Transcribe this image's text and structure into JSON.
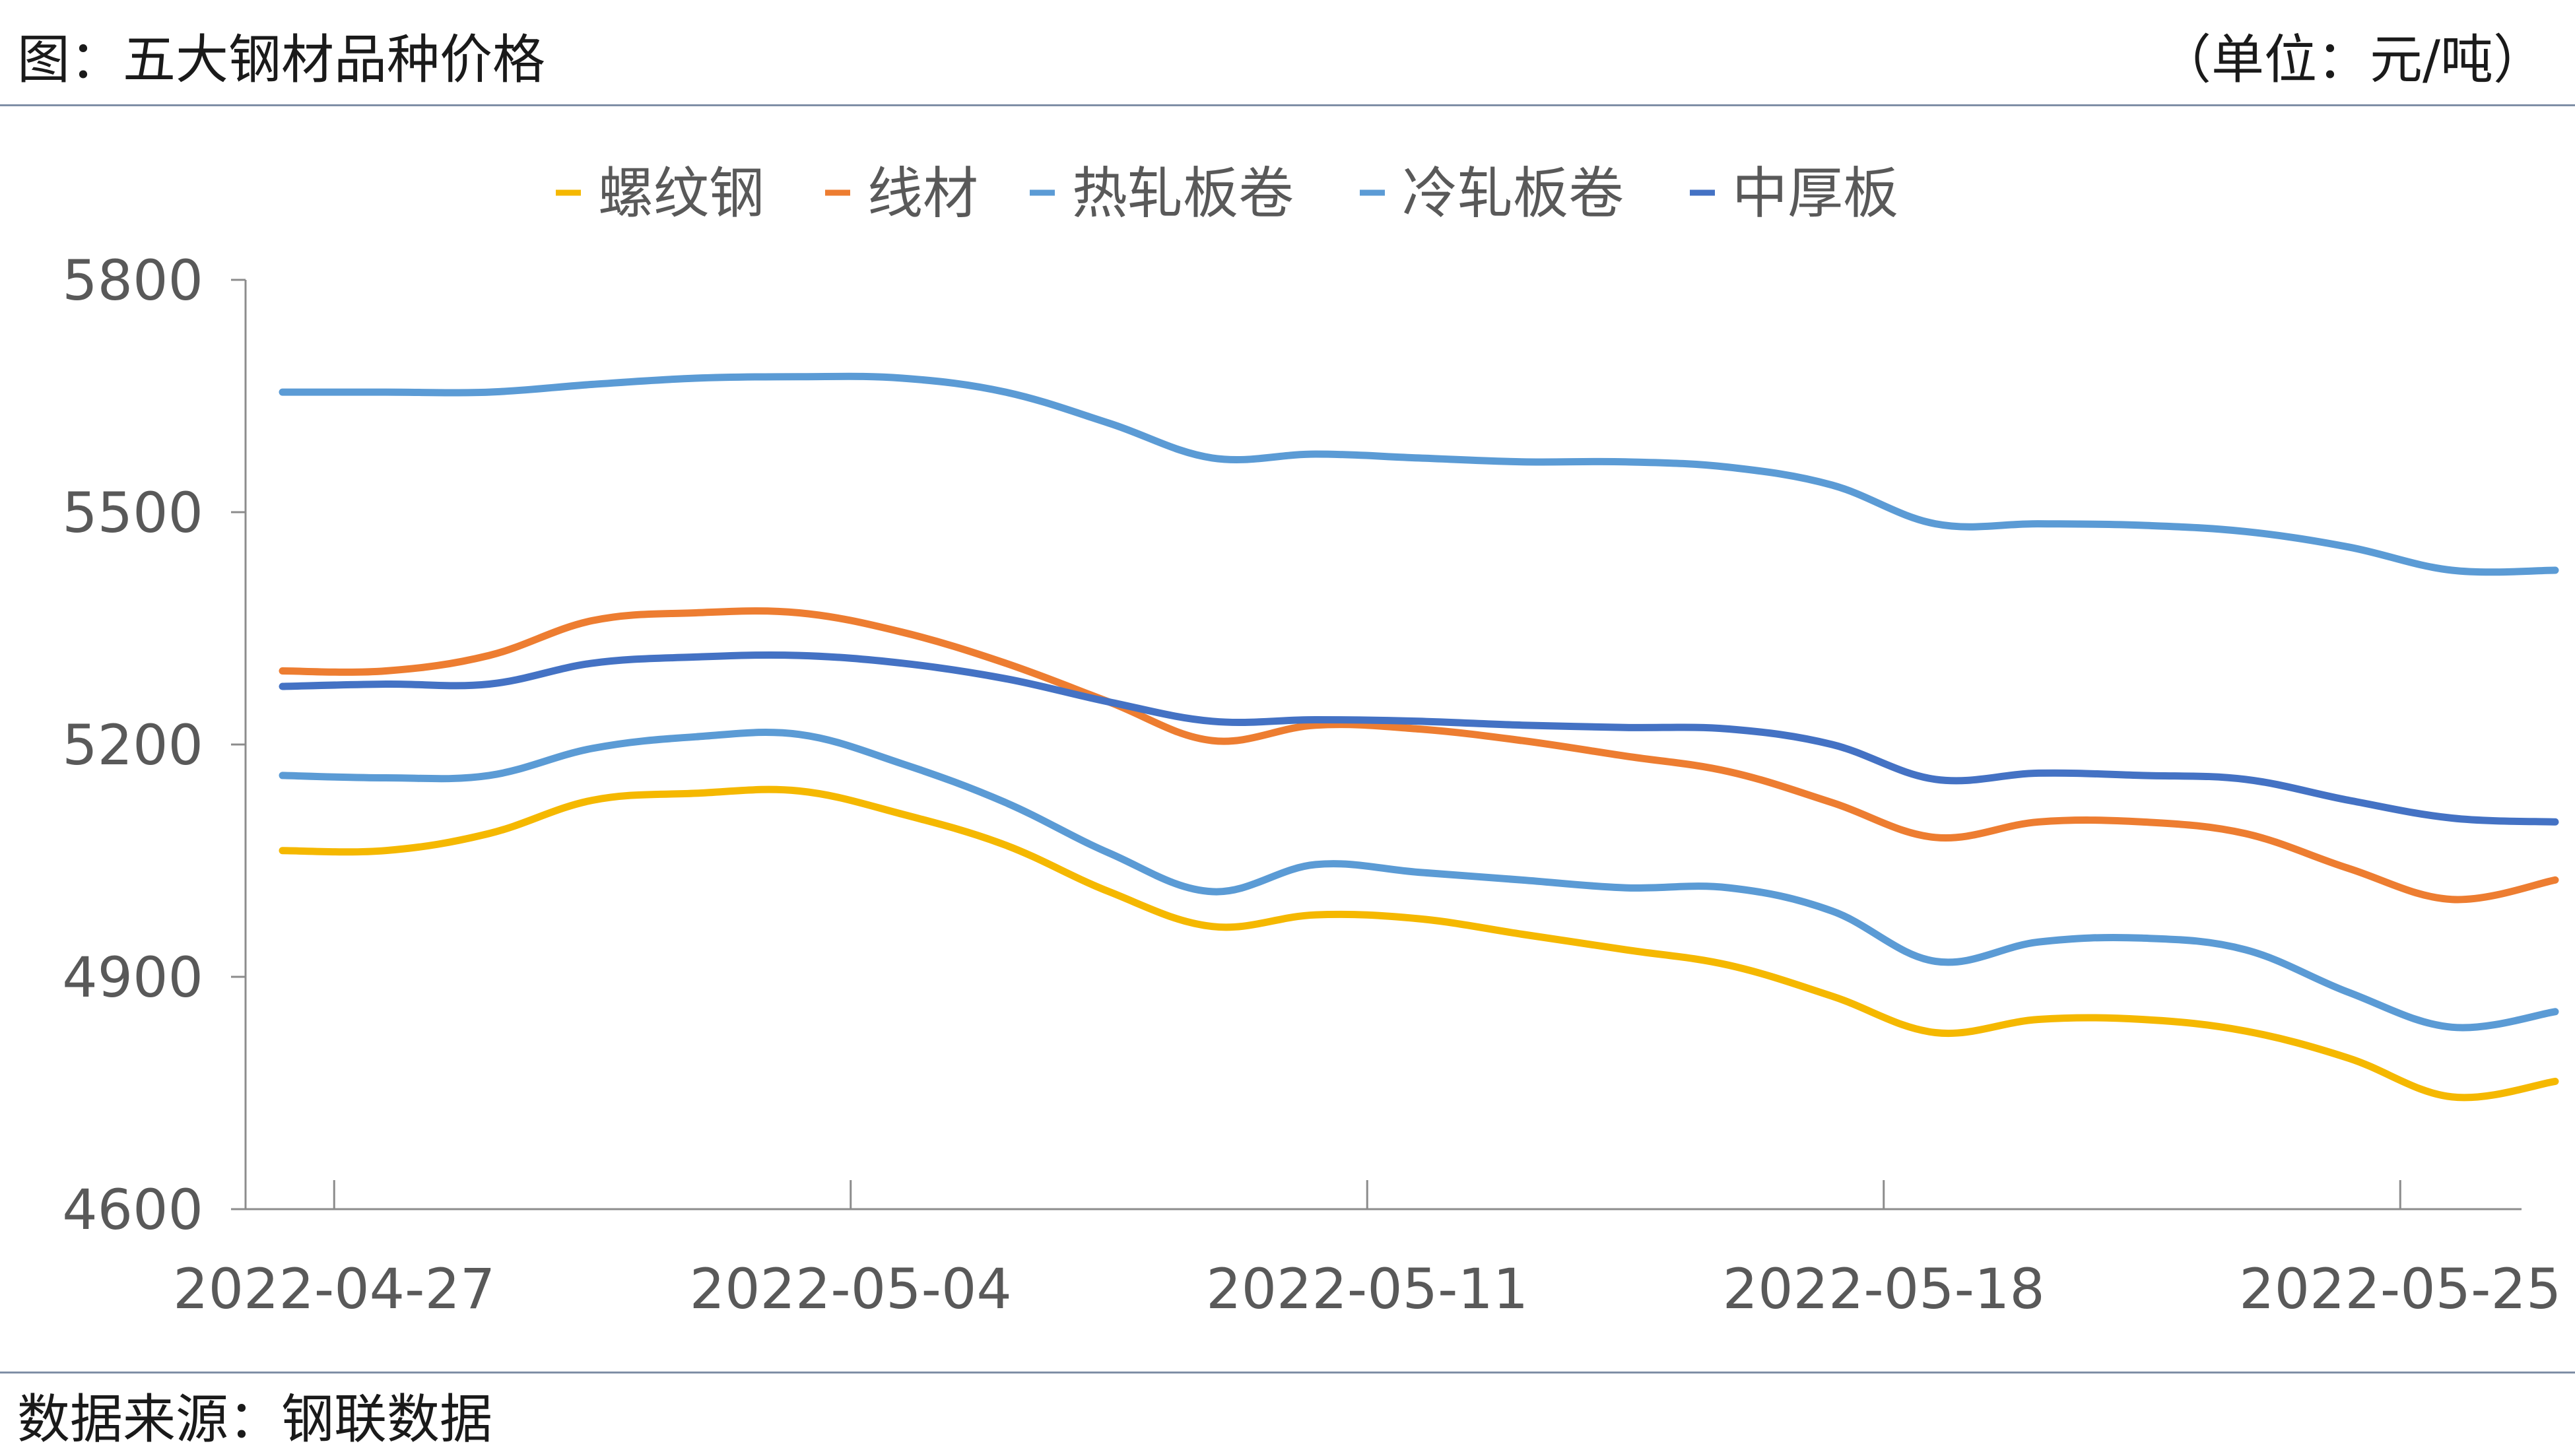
{
  "header": {
    "title": "图：五大钢材品种价格",
    "unit": "（单位：元/吨）"
  },
  "footer": {
    "source": "数据来源：钢联数据"
  },
  "colors": {
    "axis": "#8c8c8c",
    "tick_text": "#595959",
    "legend_text": "#595959"
  },
  "chart_data": {
    "type": "line",
    "title": "",
    "xlabel": "",
    "ylabel": "",
    "ylim": [
      4600,
      5800
    ],
    "y_ticks": [
      4600,
      4900,
      5200,
      5500,
      5800
    ],
    "x": [
      "2022-04-27",
      "2022-04-28",
      "2022-04-29",
      "2022-05-02",
      "2022-05-03",
      "2022-05-04",
      "2022-05-05",
      "2022-05-06",
      "2022-05-09",
      "2022-05-10",
      "2022-05-11",
      "2022-05-12",
      "2022-05-13",
      "2022-05-16",
      "2022-05-17",
      "2022-05-18",
      "2022-05-19",
      "2022-05-20",
      "2022-05-23",
      "2022-05-24",
      "2022-05-25",
      "2022-05-26",
      "2022-05-27"
    ],
    "x_tick_labels": [
      "2022-04-27",
      "2022-05-04",
      "2022-05-11",
      "2022-05-18",
      "2022-05-25"
    ],
    "legend_position": "top",
    "grid": false,
    "series": [
      {
        "name": "螺纹钢",
        "color": "#f5b800",
        "values": [
          5063,
          5063,
          5085,
          5128,
          5137,
          5140,
          5110,
          5070,
          5010,
          4965,
          4980,
          4975,
          4955,
          4935,
          4915,
          4875,
          4828,
          4845,
          4845,
          4830,
          4795,
          4745,
          4765
        ]
      },
      {
        "name": "线材",
        "color": "#ed7d31",
        "values": [
          5295,
          5295,
          5315,
          5360,
          5370,
          5370,
          5345,
          5305,
          5255,
          5205,
          5225,
          5220,
          5205,
          5185,
          5165,
          5125,
          5080,
          5100,
          5100,
          5085,
          5040,
          5000,
          5025
        ]
      },
      {
        "name": "热轧板卷",
        "color": "#5b9bd5",
        "values": [
          5160,
          5157,
          5160,
          5195,
          5210,
          5213,
          5175,
          5125,
          5060,
          5010,
          5045,
          5035,
          5025,
          5015,
          5015,
          4985,
          4920,
          4945,
          4950,
          4935,
          4880,
          4835,
          4855
        ]
      },
      {
        "name": "冷轧板卷",
        "color": "#5b9bd5",
        "values": [
          5655,
          5655,
          5655,
          5665,
          5673,
          5675,
          5673,
          5655,
          5615,
          5570,
          5575,
          5570,
          5565,
          5565,
          5558,
          5535,
          5485,
          5485,
          5483,
          5475,
          5455,
          5425,
          5425
        ]
      },
      {
        "name": "中厚板",
        "color": "#4472c4",
        "values": [
          5275,
          5278,
          5278,
          5305,
          5313,
          5315,
          5305,
          5285,
          5255,
          5230,
          5232,
          5230,
          5225,
          5222,
          5220,
          5200,
          5155,
          5163,
          5160,
          5155,
          5128,
          5105,
          5100
        ]
      }
    ]
  }
}
